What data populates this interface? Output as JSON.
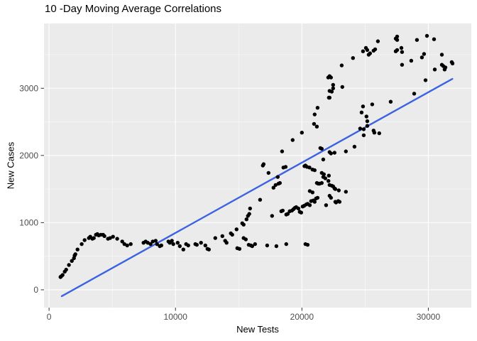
{
  "chart_data": {
    "type": "scatter",
    "title": "10 -Day Moving Average Correlations",
    "xlabel": "New Tests",
    "ylabel": "New Cases",
    "xlim": [
      -400,
      33400
    ],
    "ylim": [
      -265,
      3965
    ],
    "x_ticks": [
      0,
      10000,
      20000,
      30000
    ],
    "y_ticks": [
      0,
      1000,
      2000,
      3000
    ],
    "x_minor_ticks": [
      5000,
      15000,
      25000
    ],
    "y_minor_ticks": [
      500,
      1500,
      2500,
      3500
    ],
    "grid": "on",
    "legend_position": "none",
    "colors": {
      "panel_background": "#EBEBEB",
      "grid_major": "#FFFFFF",
      "grid_minor": "#F5F5F5",
      "point": "#000000",
      "trend_line": "#3B62E3",
      "tick_label": "#4D4D4D",
      "tick_mark": "#333333",
      "title_text": "#000000"
    },
    "trend_line": {
      "type": "linear",
      "x1": 1000,
      "y1": -95,
      "x2": 31900,
      "y2": 3140
    },
    "series": [
      {
        "name": "10-day moving average",
        "marker": "circle",
        "marker_radius": 2.7,
        "points": [
          [
            900,
            190
          ],
          [
            960,
            200
          ],
          [
            1070,
            220
          ],
          [
            1240,
            270
          ],
          [
            1350,
            300
          ],
          [
            1570,
            370
          ],
          [
            1800,
            430
          ],
          [
            1970,
            470
          ],
          [
            2020,
            510
          ],
          [
            2080,
            530
          ],
          [
            2250,
            600
          ],
          [
            2580,
            680
          ],
          [
            2810,
            740
          ],
          [
            3150,
            770
          ],
          [
            3260,
            790
          ],
          [
            3430,
            760
          ],
          [
            3540,
            770
          ],
          [
            3710,
            820
          ],
          [
            3820,
            830
          ],
          [
            3930,
            810
          ],
          [
            4100,
            820
          ],
          [
            4270,
            820
          ],
          [
            4380,
            800
          ],
          [
            4660,
            760
          ],
          [
            4830,
            770
          ],
          [
            5060,
            790
          ],
          [
            5390,
            760
          ],
          [
            5790,
            720
          ],
          [
            5960,
            680
          ],
          [
            6180,
            660
          ],
          [
            6460,
            680
          ],
          [
            7470,
            700
          ],
          [
            7640,
            720
          ],
          [
            7810,
            700
          ],
          [
            8030,
            680
          ],
          [
            8200,
            720
          ],
          [
            8430,
            730
          ],
          [
            8540,
            680
          ],
          [
            8760,
            650
          ],
          [
            8880,
            660
          ],
          [
            9440,
            720
          ],
          [
            9550,
            700
          ],
          [
            9720,
            730
          ],
          [
            9830,
            680
          ],
          [
            10170,
            700
          ],
          [
            10340,
            650
          ],
          [
            10620,
            600
          ],
          [
            10840,
            680
          ],
          [
            11010,
            660
          ],
          [
            11570,
            680
          ],
          [
            11690,
            670
          ],
          [
            12020,
            700
          ],
          [
            12360,
            660
          ],
          [
            12530,
            610
          ],
          [
            12640,
            600
          ],
          [
            13150,
            770
          ],
          [
            13710,
            800
          ],
          [
            13930,
            730
          ],
          [
            14040,
            700
          ],
          [
            14380,
            840
          ],
          [
            14490,
            820
          ],
          [
            14890,
            620
          ],
          [
            15060,
            610
          ],
          [
            15390,
            770
          ],
          [
            15560,
            750
          ],
          [
            15790,
            670
          ],
          [
            15960,
            660
          ],
          [
            16070,
            650
          ],
          [
            16290,
            680
          ],
          [
            17250,
            660
          ],
          [
            17980,
            650
          ],
          [
            18760,
            680
          ],
          [
            20280,
            680
          ],
          [
            20450,
            670
          ],
          [
            14830,
            900
          ],
          [
            15280,
            990
          ],
          [
            15390,
            970
          ],
          [
            15620,
            1050
          ],
          [
            15730,
            1100
          ],
          [
            15840,
            1130
          ],
          [
            15900,
            1210
          ],
          [
            16690,
            1340
          ],
          [
            16910,
            1850
          ],
          [
            17360,
            1740
          ],
          [
            17750,
            1520
          ],
          [
            18090,
            1680
          ],
          [
            18150,
            1580
          ],
          [
            18260,
            1590
          ],
          [
            18540,
            1820
          ],
          [
            18710,
            1830
          ],
          [
            17640,
            1100
          ],
          [
            17920,
            1560
          ],
          [
            18370,
            1170
          ],
          [
            18480,
            1180
          ],
          [
            18760,
            1120
          ],
          [
            18880,
            1130
          ],
          [
            19040,
            1170
          ],
          [
            19210,
            1180
          ],
          [
            19330,
            1200
          ],
          [
            19440,
            1220
          ],
          [
            19550,
            1230
          ],
          [
            19720,
            1210
          ],
          [
            19830,
            1160
          ],
          [
            19940,
            1150
          ],
          [
            20060,
            1240
          ],
          [
            20170,
            1250
          ],
          [
            20340,
            1270
          ],
          [
            20450,
            1280
          ],
          [
            20620,
            1260
          ],
          [
            20730,
            1320
          ],
          [
            20900,
            1330
          ],
          [
            21010,
            1310
          ],
          [
            21120,
            1360
          ],
          [
            21240,
            1370
          ],
          [
            20620,
            1470
          ],
          [
            20840,
            1450
          ],
          [
            21400,
            1580
          ],
          [
            21570,
            1590
          ],
          [
            21690,
            1680
          ],
          [
            21850,
            1660
          ],
          [
            20200,
            1840
          ],
          [
            20400,
            1830
          ],
          [
            20600,
            1820
          ],
          [
            20840,
            1790
          ],
          [
            21010,
            1780
          ],
          [
            21180,
            1590
          ],
          [
            21290,
            1580
          ],
          [
            21910,
            1260
          ],
          [
            22100,
            1620
          ],
          [
            22360,
            1550
          ],
          [
            22470,
            1540
          ],
          [
            22640,
            1500
          ],
          [
            22700,
            1300
          ],
          [
            22870,
            1320
          ],
          [
            21570,
            1740
          ],
          [
            21740,
            1720
          ],
          [
            22130,
            1700
          ],
          [
            22580,
            1510
          ],
          [
            22920,
            1480
          ],
          [
            23480,
            1460
          ],
          [
            22190,
            1400
          ],
          [
            22300,
            1370
          ],
          [
            22640,
            1310
          ],
          [
            22980,
            1310
          ],
          [
            22190,
            1560
          ],
          [
            22080,
            3160
          ],
          [
            22130,
            2860
          ],
          [
            21240,
            2710
          ],
          [
            21010,
            2610
          ],
          [
            20960,
            2470
          ],
          [
            21180,
            2430
          ],
          [
            20000,
            2340
          ],
          [
            19270,
            2230
          ],
          [
            18430,
            2060
          ],
          [
            21460,
            2110
          ],
          [
            21570,
            2100
          ],
          [
            21690,
            1940
          ],
          [
            16970,
            1870
          ],
          [
            20280,
            1850
          ],
          [
            23150,
            3340
          ],
          [
            24040,
            3450
          ],
          [
            24830,
            3550
          ],
          [
            25060,
            3600
          ],
          [
            25170,
            3570
          ],
          [
            25280,
            3500
          ],
          [
            25390,
            3520
          ],
          [
            25670,
            3560
          ],
          [
            25790,
            3580
          ],
          [
            26010,
            3700
          ],
          [
            27420,
            3740
          ],
          [
            27530,
            3770
          ],
          [
            27530,
            3720
          ],
          [
            27420,
            3550
          ],
          [
            27530,
            3570
          ],
          [
            27870,
            3600
          ],
          [
            27920,
            3540
          ],
          [
            29100,
            3720
          ],
          [
            29890,
            3780
          ],
          [
            30450,
            3730
          ],
          [
            28650,
            3410
          ],
          [
            27920,
            3350
          ],
          [
            29490,
            3460
          ],
          [
            29660,
            3510
          ],
          [
            29780,
            3120
          ],
          [
            30510,
            3280
          ],
          [
            31070,
            3500
          ],
          [
            31070,
            3350
          ],
          [
            31180,
            3330
          ],
          [
            31290,
            3280
          ],
          [
            31350,
            3310
          ],
          [
            31850,
            3390
          ],
          [
            31910,
            3370
          ],
          [
            22190,
            3180
          ],
          [
            22300,
            3160
          ],
          [
            22470,
            3050
          ],
          [
            22470,
            3000
          ],
          [
            22190,
            2960
          ],
          [
            22360,
            2950
          ],
          [
            23200,
            3020
          ],
          [
            22190,
            2860
          ],
          [
            28880,
            2920
          ],
          [
            27020,
            2800
          ],
          [
            25560,
            2760
          ],
          [
            24830,
            2730
          ],
          [
            24720,
            2640
          ],
          [
            25110,
            2580
          ],
          [
            25170,
            2510
          ],
          [
            24610,
            2400
          ],
          [
            24890,
            2390
          ],
          [
            25170,
            2440
          ],
          [
            25670,
            2370
          ],
          [
            25730,
            2340
          ],
          [
            26120,
            2330
          ],
          [
            24890,
            2300
          ],
          [
            24160,
            2130
          ],
          [
            23480,
            2060
          ],
          [
            22190,
            2050
          ],
          [
            22300,
            2030
          ],
          [
            22580,
            2040
          ]
        ]
      }
    ]
  }
}
